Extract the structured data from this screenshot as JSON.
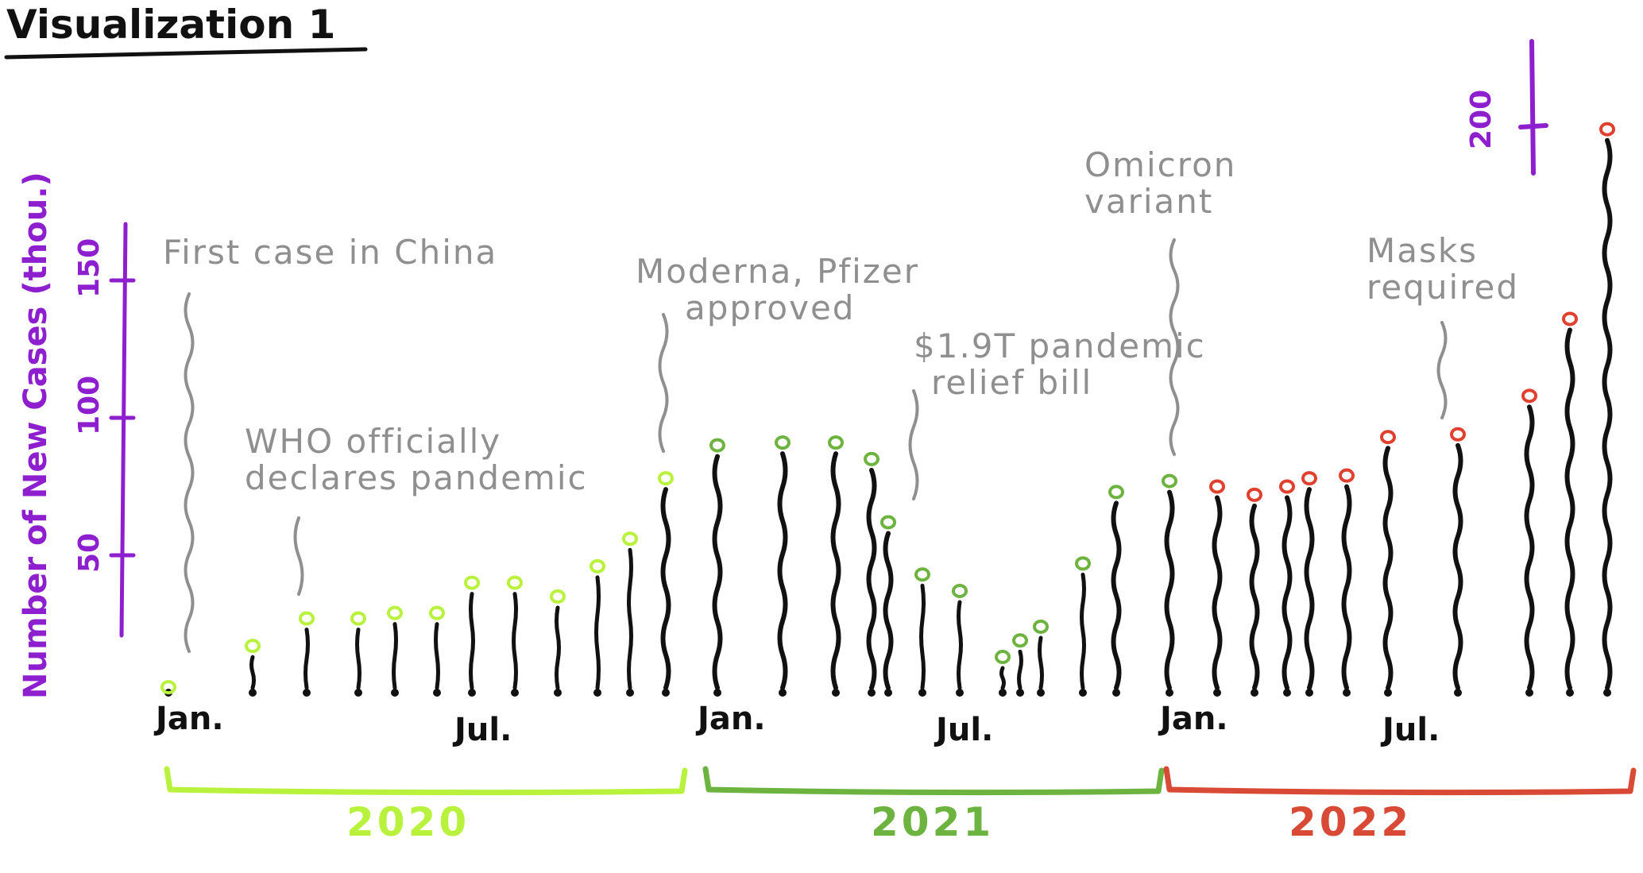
{
  "title": "Visualization 1",
  "chart_data": {
    "type": "line",
    "ylabel": "Number of New Cases (thou.)",
    "ylim": [
      0,
      200
    ],
    "yticks": [
      50,
      100,
      150
    ],
    "y_break_tick": 200,
    "month_labels": [
      "Jan.",
      "Jul.",
      "Jan.",
      "Jul.",
      "Jan.",
      "Jul."
    ],
    "year_labels": [
      {
        "label": "2020",
        "color": "#b8f23c"
      },
      {
        "label": "2021",
        "color": "#6db33f"
      },
      {
        "label": "2022",
        "color": "#d84a36"
      }
    ],
    "stem_color": "#111111",
    "marker_colors": {
      "2020": "#b8f23c",
      "2021": "#6db33f",
      "2022": "#e0412f"
    },
    "annotation_color": "#8f8f8f",
    "axis_color": "#8e1fcf",
    "series": [
      {
        "year": "2020",
        "values": [
          2,
          17,
          27,
          27,
          29,
          29,
          40,
          40,
          35,
          46,
          56,
          78
        ]
      },
      {
        "year": "2021",
        "values": [
          90,
          91,
          91,
          85,
          62,
          43,
          37,
          13,
          19,
          24,
          47,
          73,
          77
        ]
      },
      {
        "year": "2022",
        "values": [
          75,
          72,
          75,
          78,
          79,
          93,
          94,
          108,
          136,
          205
        ]
      }
    ],
    "annotations": [
      {
        "id": "first-case",
        "lines": [
          "First case in China"
        ]
      },
      {
        "id": "who",
        "lines": [
          "WHO officially",
          "declares pandemic"
        ]
      },
      {
        "id": "vaccines",
        "lines": [
          "Moderna, Pfizer",
          "approved"
        ]
      },
      {
        "id": "relief-bill",
        "lines": [
          "$1.9T pandemic",
          "relief bill"
        ]
      },
      {
        "id": "omicron",
        "lines": [
          "Omicron",
          "variant"
        ]
      },
      {
        "id": "masks",
        "lines": [
          "Masks",
          "required"
        ]
      }
    ]
  }
}
